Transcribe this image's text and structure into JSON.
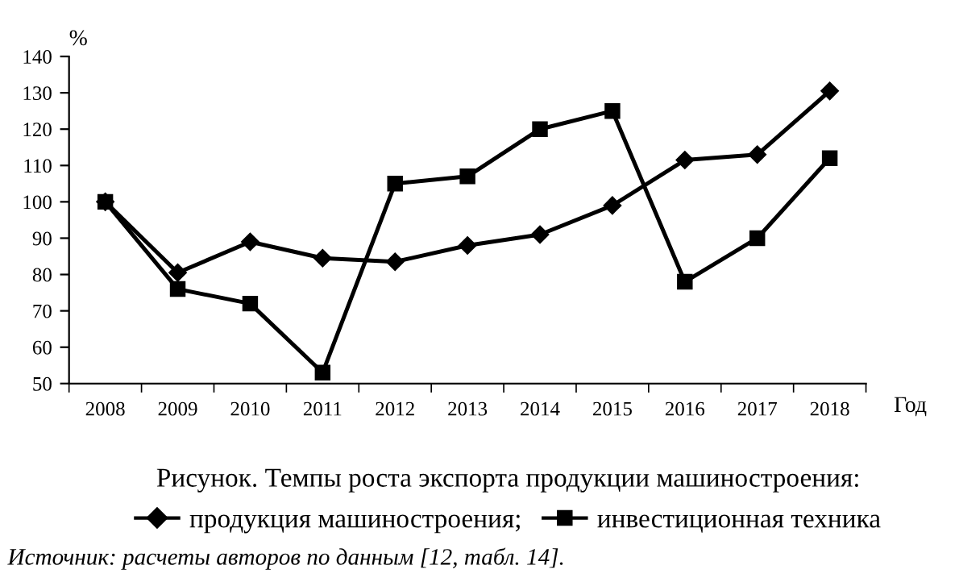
{
  "chart_data": {
    "type": "line",
    "title": "Рисунок. Темпы роста экспорта продукции машиностроения:",
    "ylabel": "%",
    "xlabel": "Год",
    "annotations": [
      "Источник: расчеты авторов по данным [12, табл. 14]."
    ],
    "categories": [
      "2008",
      "2009",
      "2010",
      "2011",
      "2012",
      "2013",
      "2014",
      "2015",
      "2016",
      "2017",
      "2018"
    ],
    "series": [
      {
        "name": "продукция машиностроения;",
        "color": "#000000",
        "marker": "diamond",
        "values": [
          100,
          80.5,
          89,
          84.5,
          83.5,
          88,
          91,
          99,
          111.5,
          113,
          130.5
        ]
      },
      {
        "name": "инвестиционная техника",
        "color": "#000000",
        "marker": "square",
        "values": [
          100,
          76,
          72,
          53,
          105,
          107,
          120,
          125,
          78,
          90,
          112
        ]
      }
    ],
    "ylim": [
      50,
      140
    ],
    "yticks": [
      50,
      60,
      70,
      80,
      90,
      100,
      110,
      120,
      130,
      140
    ],
    "grid": false,
    "legend": "bottom",
    "line_style": "solid"
  }
}
